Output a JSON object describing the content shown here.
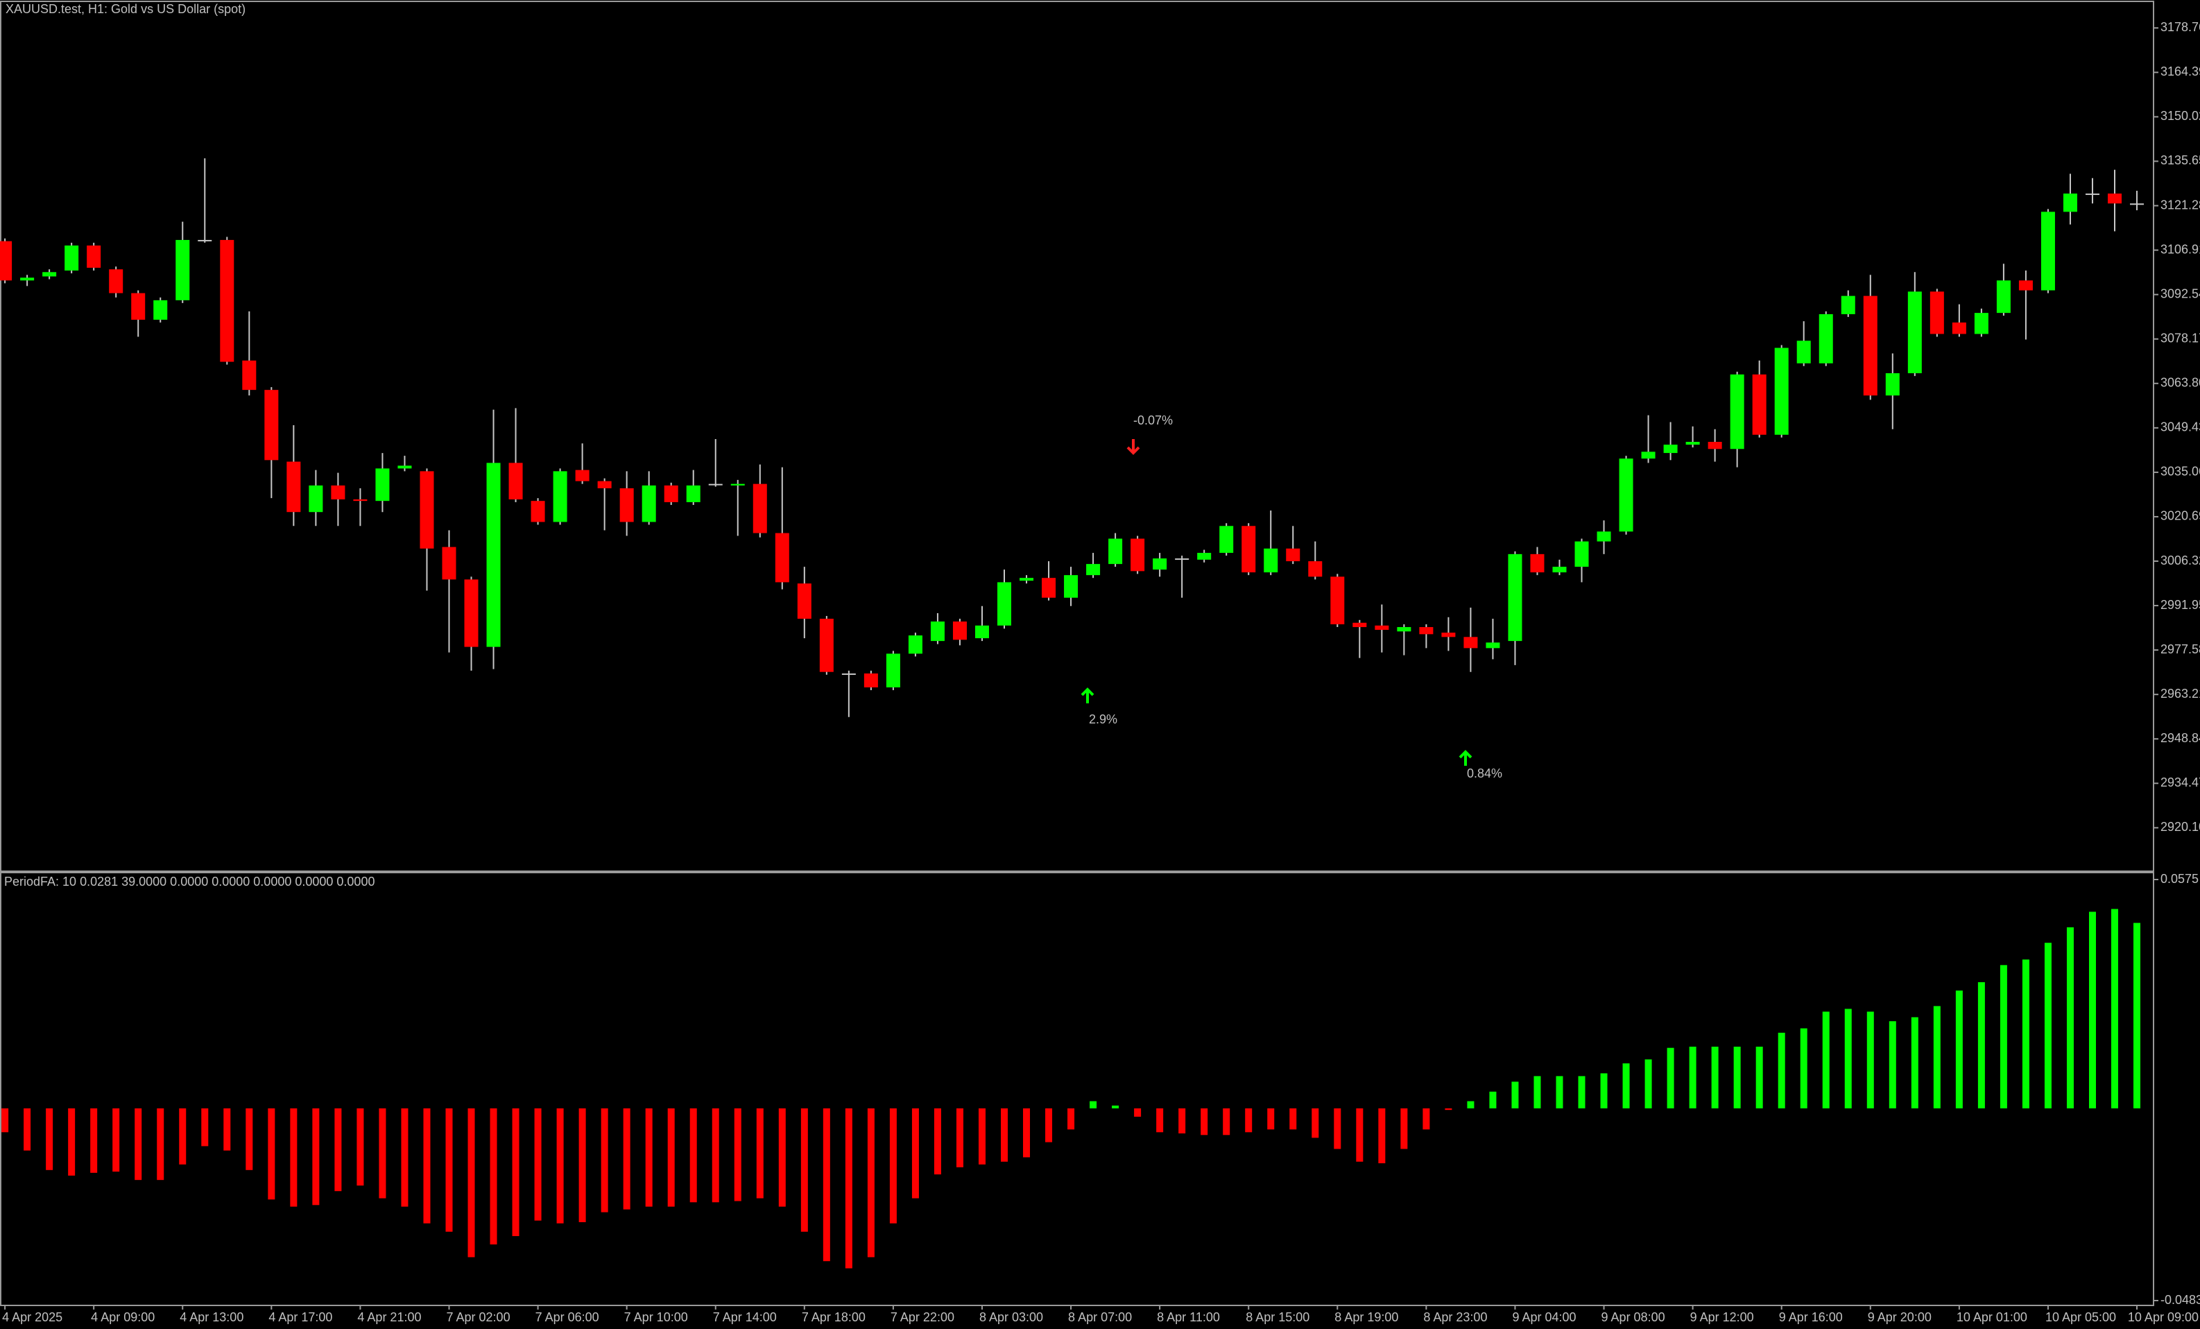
{
  "chart_data": [
    {
      "type": "candlestick",
      "title": "XAUUSD.test, H1:  Gold vs US Dollar (spot)",
      "categories": [
        "4 Apr 2025",
        null,
        null,
        null,
        "4 Apr 09:00",
        null,
        null,
        null,
        "4 Apr 13:00",
        null,
        null,
        null,
        "4 Apr 17:00",
        null,
        null,
        null,
        "4 Apr 21:00",
        null,
        null,
        null,
        "7 Apr 02:00",
        null,
        null,
        null,
        "7 Apr 06:00",
        null,
        null,
        null,
        "7 Apr 10:00",
        null,
        null,
        null,
        "7 Apr 14:00",
        null,
        null,
        null,
        "7 Apr 18:00",
        null,
        null,
        null,
        "7 Apr 22:00",
        null,
        null,
        null,
        "8 Apr 03:00",
        null,
        null,
        null,
        "8 Apr 07:00",
        null,
        null,
        null,
        "8 Apr 11:00",
        null,
        null,
        null,
        "8 Apr 15:00",
        null,
        null,
        null,
        "8 Apr 19:00",
        null,
        null,
        null,
        "8 Apr 23:00",
        null,
        null,
        null,
        "9 Apr 04:00",
        null,
        null,
        null,
        "9 Apr 08:00",
        null,
        null,
        null,
        "9 Apr 12:00",
        null,
        null,
        null,
        "9 Apr 16:00",
        null,
        null,
        null,
        "9 Apr 20:00",
        null,
        null,
        null,
        "10 Apr 01:00",
        null,
        null,
        null,
        "10 Apr 05:00",
        null,
        null,
        null,
        "10 Apr 09:00"
      ],
      "open": [
        3109.8,
        3097.1,
        3098.4,
        3100.3,
        3108.4,
        3100.7,
        3093.0,
        3084.4,
        3090.7,
        3110.2,
        3110.2,
        3071.2,
        3061.7,
        3038.5,
        3022.2,
        3030.8,
        3026.3,
        3025.8,
        3036.3,
        3035.4,
        3010.9,
        3000.4,
        2978.6,
        3038.1,
        3025.8,
        3019.0,
        3035.8,
        3032.2,
        3029.9,
        3019.0,
        3030.8,
        3025.4,
        3031.3,
        3030.8,
        3031.3,
        3015.4,
        2999.1,
        2987.7,
        2970.0,
        2970.0,
        2965.5,
        2976.4,
        2980.5,
        2986.8,
        2981.4,
        2985.5,
        3000.0,
        3000.9,
        2994.5,
        3001.8,
        3005.4,
        3013.6,
        3003.6,
        3007.2,
        3006.8,
        3009.0,
        3017.7,
        3002.7,
        3010.4,
        3006.3,
        3001.3,
        2986.4,
        2985.5,
        2983.6,
        2985.0,
        2983.2,
        2981.8,
        2978.2,
        2980.5,
        3008.6,
        3002.7,
        3004.5,
        3012.7,
        3015.9,
        3039.5,
        3041.3,
        3044.0,
        3044.9,
        3042.6,
        3066.7,
        3047.2,
        3070.3,
        3070.3,
        3086.2,
        3092.1,
        3059.9,
        3067.1,
        3093.5,
        3083.5,
        3079.8,
        3086.6,
        3097.1,
        3093.9,
        3119.3,
        3125.2,
        3125.2,
        3122.0
      ],
      "high": [
        3110.7,
        3098.9,
        3100.7,
        3109.3,
        3109.3,
        3101.6,
        3093.9,
        3091.6,
        3116.1,
        3136.6,
        3111.2,
        3087.1,
        3062.6,
        3050.3,
        3035.8,
        3034.9,
        3029.9,
        3041.3,
        3040.4,
        3036.3,
        3016.3,
        3001.3,
        3055.3,
        3055.8,
        3026.7,
        3036.3,
        3044.4,
        3033.1,
        3035.4,
        3035.4,
        3031.7,
        3035.8,
        3045.8,
        3032.6,
        3037.6,
        3036.7,
        3004.5,
        2988.6,
        2970.9,
        2970.9,
        2977.3,
        2983.2,
        2989.5,
        2987.7,
        2991.8,
        3003.6,
        3001.8,
        3006.3,
        3004.5,
        3009.0,
        3015.4,
        3014.5,
        3009.0,
        3008.1,
        3010.0,
        3018.6,
        3018.6,
        3022.7,
        3017.7,
        3012.7,
        3002.2,
        2987.3,
        2992.3,
        2985.9,
        2985.9,
        2988.2,
        2991.3,
        2987.7,
        3009.5,
        3010.9,
        3006.8,
        3013.6,
        3019.5,
        3040.4,
        3053.5,
        3051.3,
        3049.9,
        3049.0,
        3067.6,
        3071.2,
        3076.2,
        3083.9,
        3087.1,
        3093.9,
        3098.9,
        3073.5,
        3099.8,
        3094.4,
        3089.4,
        3088.0,
        3102.5,
        3100.3,
        3120.2,
        3131.6,
        3130.2,
        3132.9,
        3126.1
      ],
      "low": [
        3096.2,
        3095.3,
        3097.5,
        3099.4,
        3100.3,
        3091.6,
        3078.9,
        3083.5,
        3089.8,
        3109.3,
        3069.9,
        3059.9,
        3026.7,
        3017.7,
        3017.7,
        3017.7,
        3017.7,
        3022.2,
        3035.4,
        2996.8,
        2976.8,
        2970.9,
        2971.4,
        3025.4,
        3018.1,
        3018.1,
        3031.3,
        3016.3,
        3014.5,
        3018.1,
        3024.5,
        3024.5,
        3030.4,
        3014.5,
        3014.0,
        2997.2,
        2981.4,
        2969.6,
        2955.9,
        2964.6,
        2964.6,
        2975.5,
        2979.5,
        2979.1,
        2980.5,
        2984.5,
        2999.1,
        2993.6,
        2991.8,
        3000.9,
        3004.5,
        3002.2,
        3001.3,
        2994.5,
        3005.9,
        3008.1,
        3001.8,
        3001.8,
        3005.4,
        3000.4,
        2985.0,
        2975.0,
        2976.8,
        2975.9,
        2978.2,
        2977.3,
        2970.5,
        2974.6,
        2972.7,
        3001.8,
        3001.8,
        2999.5,
        3008.6,
        3014.9,
        3038.1,
        3039.0,
        3043.1,
        3038.5,
        3036.7,
        3046.3,
        3046.3,
        3069.4,
        3069.4,
        3085.3,
        3058.5,
        3049.0,
        3066.2,
        3078.9,
        3078.9,
        3078.9,
        3085.7,
        3078.0,
        3093.0,
        3115.2,
        3122.0,
        3113.0,
        3119.8
      ],
      "close": [
        3097.1,
        3098.0,
        3099.8,
        3108.4,
        3101.2,
        3093.0,
        3084.4,
        3090.7,
        3110.2,
        3110.2,
        3070.8,
        3061.7,
        3039.0,
        3022.2,
        3030.8,
        3026.3,
        3025.8,
        3036.3,
        3037.2,
        3010.4,
        3000.4,
        2978.6,
        3038.1,
        3026.3,
        3019.0,
        3035.4,
        3032.2,
        3029.9,
        3019.0,
        3030.8,
        3025.4,
        3030.8,
        3031.3,
        3031.3,
        3015.4,
        2999.5,
        2987.7,
        2970.5,
        2970.0,
        2965.5,
        2976.4,
        2982.3,
        2986.8,
        2980.9,
        2985.5,
        2999.5,
        3000.9,
        2994.5,
        3001.8,
        3005.4,
        3013.6,
        3003.1,
        3007.2,
        3007.2,
        3009.0,
        3017.7,
        3002.7,
        3010.4,
        3006.3,
        3001.3,
        2985.9,
        2985.0,
        2984.1,
        2985.0,
        2982.7,
        2981.8,
        2978.2,
        2980.0,
        3008.6,
        3002.7,
        3004.5,
        3012.7,
        3015.9,
        3039.5,
        3041.7,
        3044.0,
        3044.9,
        3042.6,
        3066.7,
        3047.2,
        3075.3,
        3077.6,
        3086.2,
        3092.1,
        3059.9,
        3067.1,
        3093.5,
        3079.8,
        3079.8,
        3086.6,
        3097.1,
        3093.9,
        3119.3,
        3125.2,
        3125.2,
        3122.0,
        3122.0
      ],
      "up_color": "#00ff00",
      "down_color": "#ff0000",
      "wick_color": "#c8c8c8",
      "ylim": [
        2906.5,
        3186.9
      ],
      "yticks": [
        3178.76,
        3164.39,
        3150.02,
        3135.65,
        3121.28,
        3106.91,
        3092.54,
        3078.17,
        {
          "value": 3063.8,
          "label": "3063.80"
        },
        3049.43,
        3035.06,
        3020.69,
        3006.32,
        2991.95,
        2977.58,
        2963.21,
        2948.84,
        2934.47,
        {
          "value": 2920.1,
          "label": "2920.10"
        }
      ],
      "annotations": [
        {
          "text": "-0.07%",
          "color": "#a8a8a8",
          "arrow": "down",
          "arrow_color": "#ff2020"
        },
        {
          "text": "2.9%",
          "color": "#ffd400",
          "arrow": "up",
          "arrow_color": "#00ff00"
        },
        {
          "text": "0.84%",
          "color": "#ffd400",
          "arrow": "up",
          "arrow_color": "#00ff00"
        }
      ]
    },
    {
      "type": "histogram",
      "title": "PeriodFA: 10 0.0281 39.0000 0.0000 0.0000 0.0000 0.0000 0.0000",
      "values": [
        -0.006,
        -0.0106,
        -0.0155,
        -0.0169,
        -0.0162,
        -0.0159,
        -0.018,
        -0.018,
        -0.0141,
        -0.0095,
        -0.0106,
        -0.0155,
        -0.0229,
        -0.0247,
        -0.0243,
        -0.0208,
        -0.0194,
        -0.0226,
        -0.0247,
        -0.0289,
        -0.031,
        -0.0374,
        -0.0342,
        -0.0321,
        -0.0282,
        -0.0289,
        -0.0286,
        -0.0261,
        -0.0254,
        -0.0247,
        -0.0247,
        -0.0236,
        -0.0236,
        -0.0233,
        -0.0226,
        -0.0247,
        -0.031,
        -0.0384,
        -0.0402,
        -0.0374,
        -0.0289,
        -0.0226,
        -0.0166,
        -0.0148,
        -0.0141,
        -0.0134,
        -0.0123,
        -0.0085,
        -0.0053,
        0.0018,
        0.0007,
        -0.0021,
        -0.006,
        -0.0063,
        -0.0067,
        -0.0067,
        -0.006,
        -0.0053,
        -0.0053,
        -0.0074,
        -0.0102,
        -0.0134,
        -0.0138,
        -0.0102,
        -0.0053,
        -0.0004,
        0.0018,
        0.0042,
        0.0067,
        0.0081,
        0.0081,
        0.0081,
        0.0088,
        0.0113,
        0.0123,
        0.0152,
        0.0155,
        0.0155,
        0.0155,
        0.0155,
        0.019,
        0.0201,
        0.0243,
        0.025,
        0.0243,
        0.0219,
        0.0229,
        0.0257,
        0.0296,
        0.0317,
        0.036,
        0.0374,
        0.0416,
        0.0455,
        0.0494,
        0.0501,
        0.0466
      ],
      "up_color": "#00ff00",
      "down_color": "#ff0000",
      "ylim": [
        -0.0483,
        0.0575
      ],
      "yticks": [
        0.0575,
        -0.0483
      ]
    }
  ]
}
